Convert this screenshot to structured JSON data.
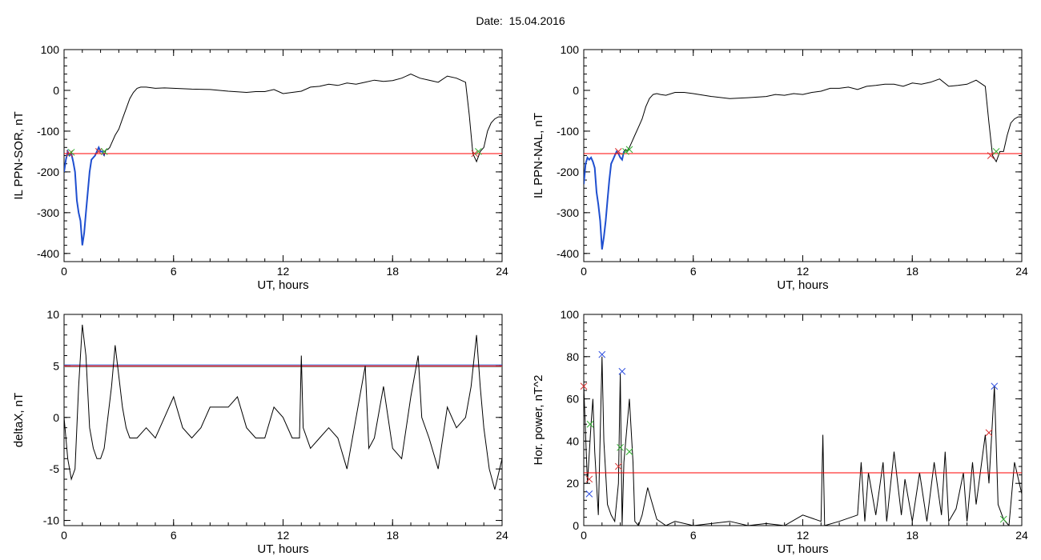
{
  "header": {
    "date_label": "Date:",
    "date_value": "15.04.2016"
  },
  "colors": {
    "trace": "#000000",
    "threshold": "#ff0000",
    "highlight": "#1f4fd0",
    "marker_red": "#d83030",
    "marker_green": "#30b030",
    "marker_blue": "#3050e0",
    "band_blue": "#3060d0",
    "band_gray": "#808080"
  },
  "chart_data": [
    {
      "id": "ppn-sor",
      "type": "line",
      "title": "",
      "xlabel": "UT, hours",
      "ylabel": "IL PPN-SOR, nT",
      "xlim": [
        0,
        24
      ],
      "ylim": [
        -420,
        100
      ],
      "xticks": [
        0,
        6,
        12,
        18,
        24
      ],
      "yticks": [
        -400,
        -300,
        -200,
        -100,
        0,
        100
      ],
      "threshold": -155,
      "series": [
        {
          "role": "trace",
          "x": [
            0,
            0.1,
            0.2,
            0.3,
            0.4,
            0.5,
            0.6,
            0.7,
            0.8,
            0.9,
            1.0,
            1.1,
            1.2,
            1.3,
            1.4,
            1.5,
            1.6,
            1.7,
            1.8,
            1.9,
            2.0,
            2.1,
            2.2,
            2.3,
            2.4,
            2.5,
            2.6,
            2.8,
            3.0,
            3.2,
            3.4,
            3.6,
            3.8,
            4.0,
            4.2,
            4.5,
            5.0,
            5.5,
            6.0,
            7.0,
            8.0,
            9.0,
            10.0,
            10.5,
            11.0,
            11.5,
            12.0,
            12.5,
            13.0,
            13.5,
            14.0,
            14.5,
            15.0,
            15.5,
            16.0,
            16.5,
            17.0,
            17.5,
            18.0,
            18.5,
            19.0,
            19.5,
            20.0,
            20.5,
            21.0,
            21.5,
            22.0,
            22.2,
            22.4,
            22.6,
            22.8,
            23.0,
            23.2,
            23.4,
            23.6,
            23.8,
            24.0
          ],
          "y": [
            -200,
            -170,
            -150,
            -160,
            -155,
            -175,
            -200,
            -270,
            -300,
            -320,
            -380,
            -350,
            -300,
            -250,
            -200,
            -170,
            -165,
            -160,
            -150,
            -140,
            -150,
            -150,
            -160,
            -145,
            -145,
            -140,
            -130,
            -110,
            -95,
            -70,
            -45,
            -20,
            -5,
            5,
            8,
            8,
            5,
            6,
            5,
            3,
            2,
            -2,
            -5,
            -3,
            -3,
            2,
            -8,
            -5,
            -2,
            8,
            10,
            15,
            12,
            18,
            15,
            20,
            25,
            22,
            24,
            30,
            40,
            30,
            25,
            20,
            35,
            30,
            20,
            -60,
            -155,
            -175,
            -150,
            -140,
            -100,
            -80,
            -70,
            -65,
            -65
          ]
        },
        {
          "role": "highlight",
          "x": [
            0,
            0.1,
            0.2,
            0.3,
            0.4,
            0.5,
            0.6,
            0.7,
            0.8,
            0.9,
            1.0,
            1.1,
            1.2,
            1.3,
            1.4,
            1.5,
            1.6,
            1.7,
            1.8,
            1.9,
            2.0,
            2.1,
            2.2
          ],
          "y": [
            -200,
            -170,
            -150,
            -160,
            -155,
            -175,
            -200,
            -270,
            -300,
            -320,
            -380,
            -350,
            -300,
            -250,
            -200,
            -170,
            -165,
            -160,
            -150,
            -140,
            -150,
            -150,
            -160
          ]
        }
      ],
      "markers": [
        {
          "x": 0.3,
          "y": -155,
          "color": "red"
        },
        {
          "x": 0.4,
          "y": -152,
          "color": "green"
        },
        {
          "x": 1.9,
          "y": -150,
          "color": "red"
        },
        {
          "x": 2.2,
          "y": -150,
          "color": "green"
        },
        {
          "x": 22.5,
          "y": -155,
          "color": "red"
        },
        {
          "x": 22.7,
          "y": -150,
          "color": "green"
        }
      ]
    },
    {
      "id": "ppn-nal",
      "type": "line",
      "title": "",
      "xlabel": "UT, hours",
      "ylabel": "IL PPN-NAL, nT",
      "xlim": [
        0,
        24
      ],
      "ylim": [
        -420,
        100
      ],
      "xticks": [
        0,
        6,
        12,
        18,
        24
      ],
      "yticks": [
        -400,
        -300,
        -200,
        -100,
        0,
        100
      ],
      "threshold": -155,
      "series": [
        {
          "role": "trace",
          "x": [
            0,
            0.1,
            0.2,
            0.3,
            0.4,
            0.5,
            0.6,
            0.7,
            0.8,
            0.9,
            1.0,
            1.1,
            1.2,
            1.3,
            1.4,
            1.5,
            1.6,
            1.7,
            1.8,
            1.9,
            2.0,
            2.1,
            2.2,
            2.3,
            2.4,
            2.5,
            2.6,
            2.8,
            3.0,
            3.2,
            3.4,
            3.6,
            3.8,
            4.0,
            4.2,
            4.5,
            5.0,
            5.5,
            6.0,
            7.0,
            8.0,
            9.0,
            10.0,
            10.5,
            11.0,
            11.5,
            12.0,
            12.5,
            13.0,
            13.5,
            14.0,
            14.5,
            15.0,
            15.5,
            16.0,
            16.5,
            17.0,
            17.5,
            18.0,
            18.5,
            19.0,
            19.5,
            20.0,
            20.5,
            21.0,
            21.5,
            22.0,
            22.2,
            22.4,
            22.6,
            22.8,
            23.0,
            23.2,
            23.4,
            23.6,
            23.8,
            24.0
          ],
          "y": [
            -230,
            -180,
            -165,
            -170,
            -165,
            -175,
            -190,
            -250,
            -280,
            -320,
            -390,
            -360,
            -320,
            -270,
            -220,
            -180,
            -170,
            -160,
            -150,
            -155,
            -165,
            -170,
            -150,
            -145,
            -150,
            -140,
            -130,
            -110,
            -90,
            -70,
            -40,
            -20,
            -10,
            -8,
            -10,
            -12,
            -5,
            -5,
            -8,
            -15,
            -20,
            -18,
            -15,
            -10,
            -12,
            -8,
            -10,
            -5,
            -2,
            5,
            5,
            8,
            2,
            10,
            12,
            15,
            15,
            10,
            18,
            15,
            20,
            28,
            10,
            12,
            15,
            25,
            10,
            -80,
            -160,
            -175,
            -150,
            -150,
            -110,
            -80,
            -70,
            -65,
            -65
          ]
        },
        {
          "role": "highlight",
          "x": [
            0,
            0.1,
            0.2,
            0.3,
            0.4,
            0.5,
            0.6,
            0.7,
            0.8,
            0.9,
            1.0,
            1.1,
            1.2,
            1.3,
            1.4,
            1.5,
            1.6,
            1.7,
            1.8,
            1.9,
            2.0,
            2.1,
            2.2
          ],
          "y": [
            -230,
            -180,
            -165,
            -170,
            -165,
            -175,
            -190,
            -250,
            -280,
            -320,
            -390,
            -360,
            -320,
            -270,
            -220,
            -180,
            -170,
            -160,
            -150,
            -155,
            -165,
            -170,
            -150
          ]
        }
      ],
      "markers": [
        {
          "x": 1.9,
          "y": -150,
          "color": "red"
        },
        {
          "x": 2.3,
          "y": -150,
          "color": "green"
        },
        {
          "x": 2.5,
          "y": -145,
          "color": "green"
        },
        {
          "x": 22.3,
          "y": -160,
          "color": "red"
        },
        {
          "x": 22.6,
          "y": -150,
          "color": "green"
        }
      ]
    },
    {
      "id": "deltax",
      "type": "line",
      "title": "",
      "xlabel": "UT, hours",
      "ylabel": "deltaX, nT",
      "xlim": [
        0,
        24
      ],
      "ylim": [
        -10.5,
        10
      ],
      "xticks": [
        0,
        6,
        12,
        18,
        24
      ],
      "yticks": [
        -10,
        -5,
        0,
        5,
        10
      ],
      "bands": [
        {
          "y": 5.1,
          "color": "blue"
        },
        {
          "y": 4.9,
          "color": "gray"
        },
        {
          "y": 5.0,
          "color": "red"
        }
      ],
      "series": [
        {
          "role": "trace",
          "x": [
            0,
            0.2,
            0.4,
            0.6,
            0.8,
            1.0,
            1.2,
            1.4,
            1.6,
            1.8,
            2.0,
            2.2,
            2.4,
            2.6,
            2.8,
            3.0,
            3.2,
            3.4,
            3.6,
            3.8,
            4.0,
            4.5,
            5.0,
            5.5,
            6.0,
            6.5,
            7.0,
            7.5,
            8.0,
            8.5,
            9.0,
            9.5,
            10.0,
            10.5,
            11.0,
            11.5,
            12.0,
            12.5,
            12.9,
            13.0,
            13.1,
            13.5,
            14.0,
            14.5,
            15.0,
            15.5,
            16.0,
            16.5,
            16.7,
            17.0,
            17.5,
            18.0,
            18.5,
            19.0,
            19.4,
            19.6,
            20.0,
            20.5,
            21.0,
            21.5,
            22.0,
            22.3,
            22.6,
            22.8,
            23.0,
            23.3,
            23.6,
            24.0
          ],
          "y": [
            0,
            -4,
            -6,
            -5,
            3,
            9,
            6,
            -1,
            -3,
            -4,
            -4,
            -3,
            0,
            3,
            7,
            4,
            1,
            -1,
            -2,
            -2,
            -2,
            -1,
            -2,
            0,
            2,
            -1,
            -2,
            -1,
            1,
            1,
            1,
            2,
            -1,
            -2,
            -2,
            1,
            0,
            -2,
            -2,
            6,
            -1,
            -3,
            -2,
            -1,
            -2,
            -5,
            0,
            5,
            -3,
            -2,
            3,
            -3,
            -4,
            2,
            6,
            0,
            -2,
            -5,
            1,
            -1,
            0,
            3,
            8,
            3,
            -1,
            -5,
            -7,
            -4
          ]
        }
      ]
    },
    {
      "id": "hor-power",
      "type": "line",
      "title": "",
      "xlabel": "UT, hours",
      "ylabel": "Hor. power, nT^2",
      "xlim": [
        0,
        24
      ],
      "ylim": [
        0,
        100
      ],
      "xticks": [
        0,
        6,
        12,
        18,
        24
      ],
      "yticks": [
        0,
        20,
        40,
        60,
        80,
        100
      ],
      "threshold": 25,
      "series": [
        {
          "role": "trace",
          "x": [
            0,
            0.2,
            0.4,
            0.5,
            0.6,
            0.8,
            1.0,
            1.1,
            1.3,
            1.5,
            1.7,
            1.9,
            2.0,
            2.1,
            2.2,
            2.3,
            2.5,
            2.7,
            2.8,
            3.0,
            3.2,
            3.5,
            4.0,
            4.5,
            5.0,
            6.0,
            7.0,
            8.0,
            9.0,
            10.0,
            11.0,
            12.0,
            13.0,
            13.1,
            13.2,
            14.0,
            15.0,
            15.2,
            15.4,
            15.6,
            16.0,
            16.4,
            16.6,
            17.0,
            17.4,
            17.6,
            18.0,
            18.4,
            18.8,
            19.2,
            19.6,
            19.8,
            20.0,
            20.4,
            20.8,
            21.0,
            21.3,
            21.5,
            22.0,
            22.2,
            22.5,
            22.7,
            23.0,
            23.3,
            23.6,
            24.0
          ],
          "y": [
            66,
            20,
            48,
            60,
            35,
            5,
            80,
            40,
            10,
            5,
            2,
            20,
            72,
            0,
            30,
            40,
            60,
            30,
            2,
            0,
            5,
            18,
            3,
            0,
            2,
            0,
            1,
            2,
            0,
            1,
            0,
            5,
            2,
            43,
            0,
            2,
            5,
            30,
            2,
            25,
            5,
            30,
            2,
            35,
            5,
            22,
            2,
            25,
            2,
            30,
            5,
            35,
            2,
            8,
            25,
            2,
            30,
            10,
            43,
            20,
            66,
            10,
            3,
            0,
            30,
            15
          ]
        }
      ],
      "markers": [
        {
          "x": 0,
          "y": 66,
          "color": "red"
        },
        {
          "x": 0.3,
          "y": 22,
          "color": "red"
        },
        {
          "x": 0.35,
          "y": 48,
          "color": "green"
        },
        {
          "x": 0.3,
          "y": 15,
          "color": "blue"
        },
        {
          "x": 1.0,
          "y": 81,
          "color": "blue"
        },
        {
          "x": 1.9,
          "y": 28,
          "color": "red"
        },
        {
          "x": 2.0,
          "y": 37,
          "color": "green"
        },
        {
          "x": 2.1,
          "y": 73,
          "color": "blue"
        },
        {
          "x": 2.5,
          "y": 35,
          "color": "green"
        },
        {
          "x": 22.2,
          "y": 44,
          "color": "red"
        },
        {
          "x": 22.5,
          "y": 66,
          "color": "blue"
        },
        {
          "x": 23.0,
          "y": 3,
          "color": "green"
        }
      ]
    }
  ]
}
